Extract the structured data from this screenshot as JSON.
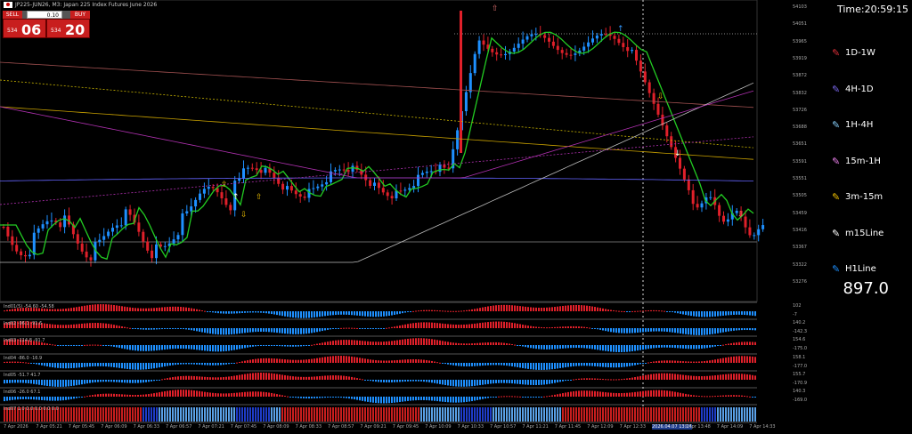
{
  "header": {
    "title": "JP225-JUN26, M3:  Japan 225 Index Futures June 2026"
  },
  "trade": {
    "sell_label": "SELL",
    "buy_label": "BUY",
    "volume": "0.10",
    "sell_small": "534",
    "sell_big": "06",
    "buy_small": "534",
    "buy_big": "20"
  },
  "price_axis": [
    "54103",
    "54051",
    "53965",
    "53919",
    "53872",
    "53832",
    "53726",
    "53688",
    "53651",
    "53591",
    "53551",
    "53505",
    "53459",
    "53416",
    "53367",
    "53322",
    "53276"
  ],
  "indicators": [
    {
      "label": "Ind01(5) -54.60 -54.58",
      "axis": [
        "102",
        "-7"
      ]
    },
    {
      "label": "Ind02 -96.1 -91.6",
      "axis": [
        "140.2",
        "-142.3"
      ]
    },
    {
      "label": "Ind03 -114.8 -91.7",
      "axis": [
        "154.6",
        "-175.0"
      ]
    },
    {
      "label": "Ind04 -86.0 -16.9",
      "axis": [
        "158.1",
        "-177.0"
      ]
    },
    {
      "label": "Ind05 -51.7 41.7",
      "axis": [
        "155.7",
        "-170.9"
      ]
    },
    {
      "label": "Ind06 -26.0 67.1",
      "axis": [
        "140.3",
        "-169.0"
      ]
    },
    {
      "label": "Ind07 1.0 0.0 0.0 0.0 0.0",
      "axis": []
    }
  ],
  "time_axis": [
    "7 Apr 2026",
    "7 Apr 05:21",
    "7 Apr 05:45",
    "7 Apr 06:09",
    "7 Apr 06:33",
    "7 Apr 06:57",
    "7 Apr 07:21",
    "7 Apr 07:45",
    "7 Apr 08:09",
    "7 Apr 08:33",
    "7 Apr 08:57",
    "7 Apr 09:21",
    "7 Apr 09:45",
    "7 Apr 10:09",
    "7 Apr 10:33",
    "7 Apr 10:57",
    "7 Apr 11:21",
    "7 Apr 11:45",
    "7 Apr 12:09",
    "7 Apr 12:33",
    "2026.04.07 13:24",
    "7 Apr 13:48",
    "7 Apr 14:09",
    "7 Apr 14:33"
  ],
  "right_panel": {
    "time": "Time:20:59:15",
    "timeframes": [
      {
        "label": "1D-1W",
        "color": "#e0303a"
      },
      {
        "label": "4H-1D",
        "color": "#7b68ee"
      },
      {
        "label": "1H-4H",
        "color": "#87cefa"
      },
      {
        "label": "15m-1H",
        "color": "#ee82ee"
      },
      {
        "label": "3m-15m",
        "color": "#f0c000"
      },
      {
        "label": "m15Line",
        "color": "#ffffff"
      },
      {
        "label": "H1Line",
        "color": "#1e90ff"
      }
    ],
    "value": "897.0"
  }
}
